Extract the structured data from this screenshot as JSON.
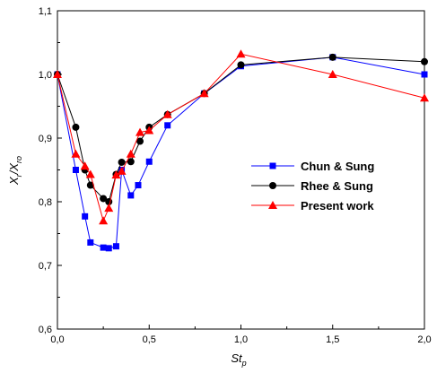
{
  "chart_data": {
    "type": "line",
    "title": "",
    "xlabel": "St_p",
    "xlabel_main": "St",
    "xlabel_sub": "p",
    "ylabel": "X_r/X_ro",
    "ylabel_parts": {
      "x1": "X",
      "sub1": "r",
      "slash": "/",
      "x2": "X",
      "sub2": "ro"
    },
    "xlim": [
      0.0,
      2.0
    ],
    "ylim": [
      0.6,
      1.1
    ],
    "x_ticks": [
      0.0,
      0.5,
      1.0,
      1.5,
      2.0
    ],
    "x_tick_labels": [
      "0,0",
      "0,5",
      "1,0",
      "1,5",
      "2,0"
    ],
    "y_ticks": [
      0.6,
      0.7,
      0.8,
      0.9,
      1.0,
      1.1
    ],
    "y_tick_labels": [
      "0,6",
      "0,7",
      "0,8",
      "0,9",
      "1,0",
      "1,1"
    ],
    "grid": false,
    "legend_position": "right-center",
    "series": [
      {
        "name": "Chun & Sung",
        "color": "#0000ff",
        "marker": "square",
        "x": [
          0.0,
          0.1,
          0.15,
          0.18,
          0.25,
          0.28,
          0.32,
          0.35,
          0.4,
          0.44,
          0.5,
          0.6,
          0.8,
          1.0,
          1.5,
          2.0
        ],
        "y": [
          1.0,
          0.85,
          0.777,
          0.736,
          0.728,
          0.727,
          0.73,
          0.85,
          0.81,
          0.826,
          0.863,
          0.92,
          0.97,
          1.013,
          1.027,
          1.0
        ]
      },
      {
        "name": "Rhee & Sung",
        "color": "#000000",
        "marker": "circle",
        "x": [
          0.0,
          0.1,
          0.15,
          0.18,
          0.25,
          0.28,
          0.32,
          0.35,
          0.4,
          0.45,
          0.5,
          0.6,
          0.8,
          1.0,
          1.5,
          2.0
        ],
        "y": [
          1.0,
          0.917,
          0.85,
          0.826,
          0.805,
          0.8,
          0.843,
          0.862,
          0.863,
          0.895,
          0.917,
          0.937,
          0.97,
          1.015,
          1.027,
          1.02
        ]
      },
      {
        "name": "Present work",
        "color": "#ff0000",
        "marker": "triangle",
        "x": [
          0.0,
          0.1,
          0.15,
          0.18,
          0.25,
          0.28,
          0.32,
          0.35,
          0.4,
          0.45,
          0.5,
          0.6,
          0.8,
          1.0,
          1.5,
          2.0
        ],
        "y": [
          1.0,
          0.875,
          0.856,
          0.843,
          0.77,
          0.79,
          0.842,
          0.848,
          0.875,
          0.909,
          0.912,
          0.937,
          0.97,
          1.032,
          1.0,
          0.963
        ]
      }
    ]
  }
}
